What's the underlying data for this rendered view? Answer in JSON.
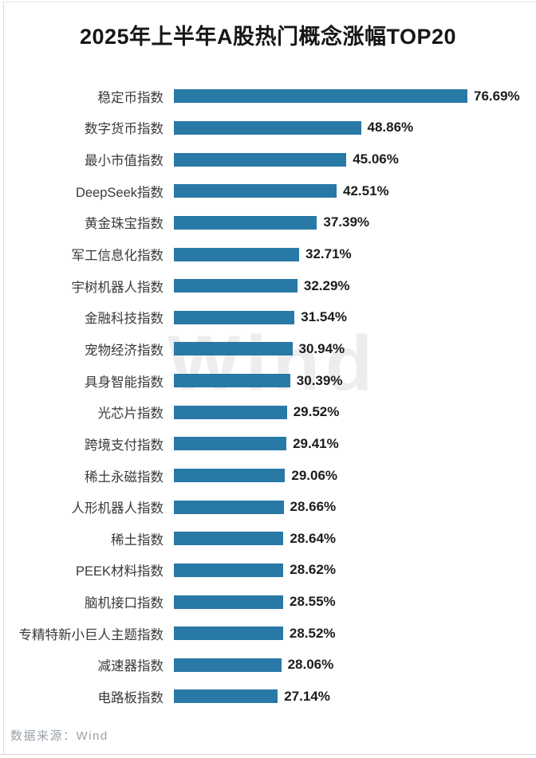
{
  "title": "2025年上半年A股热门概念涨幅TOP20",
  "watermark": "Wind",
  "footer": {
    "source_note": "数据来源：Wind"
  },
  "chart_data": {
    "type": "bar",
    "orientation": "horizontal",
    "title": "2025年上半年A股热门概念涨幅TOP20",
    "categories": [
      "稳定币指数",
      "数字货币指数",
      "最小市值指数",
      "DeepSeek指数",
      "黄金珠宝指数",
      "军工信息化指数",
      "宇树机器人指数",
      "金融科技指数",
      "宠物经济指数",
      "具身智能指数",
      "光芯片指数",
      "跨境支付指数",
      "稀土永磁指数",
      "人形机器人指数",
      "稀土指数",
      "PEEK材料指数",
      "脑机接口指数",
      "专精特新小巨人主题指数",
      "减速器指数",
      "电路板指数"
    ],
    "values": [
      76.69,
      48.86,
      45.06,
      42.51,
      37.39,
      32.71,
      32.29,
      31.54,
      30.94,
      30.39,
      29.52,
      29.41,
      29.06,
      28.66,
      28.64,
      28.62,
      28.55,
      28.52,
      28.06,
      27.14
    ],
    "value_labels": [
      "76.69%",
      "48.86%",
      "45.06%",
      "42.51%",
      "37.39%",
      "32.71%",
      "32.29%",
      "31.54%",
      "30.94%",
      "30.39%",
      "29.52%",
      "29.41%",
      "29.06%",
      "28.66%",
      "28.64%",
      "28.62%",
      "28.55%",
      "28.52%",
      "28.06%",
      "27.14%"
    ],
    "xlabel": "",
    "ylabel": "",
    "xlim": [
      0,
      80
    ],
    "grid": false,
    "legend_position": "none",
    "bar_color": "#2979A6",
    "watermark": "Wind",
    "source_note": "数据来源：Wind"
  }
}
